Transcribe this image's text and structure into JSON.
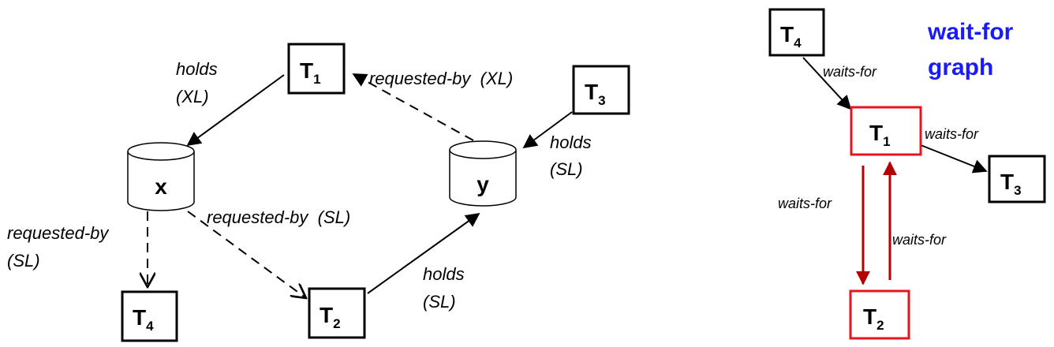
{
  "left": {
    "nodes": {
      "t1": {
        "main": "T",
        "sub": "1"
      },
      "t2": {
        "main": "T",
        "sub": "2"
      },
      "t3": {
        "main": "T",
        "sub": "3"
      },
      "t4": {
        "main": "T",
        "sub": "4"
      }
    },
    "resources": {
      "x": "x",
      "y": "y"
    },
    "edges": {
      "t1_x_line1": "holds",
      "t1_x_line2": "(XL)",
      "y_t1": "requested-by  (XL)",
      "t3_y_line1": "holds",
      "t3_y_line2": "(SL)",
      "x_t2": "requested-by  (SL)",
      "x_t4_line1": "requested-by",
      "x_t4_line2": "(SL)",
      "t2_y_line1": "holds",
      "t2_y_line2": "(SL)"
    }
  },
  "right": {
    "title_line1": "wait-for",
    "title_line2": "graph",
    "title_color": "#1a1aff",
    "highlight_color": "#e8141d",
    "nodes": {
      "t1": {
        "main": "T",
        "sub": "1"
      },
      "t2": {
        "main": "T",
        "sub": "2"
      },
      "t3": {
        "main": "T",
        "sub": "3"
      },
      "t4": {
        "main": "T",
        "sub": "4"
      }
    },
    "edges": {
      "t4_t1": "waits-for",
      "t1_t3": "waits-for",
      "t1_t2": "waits-for",
      "t2_t1": "waits-for"
    }
  }
}
